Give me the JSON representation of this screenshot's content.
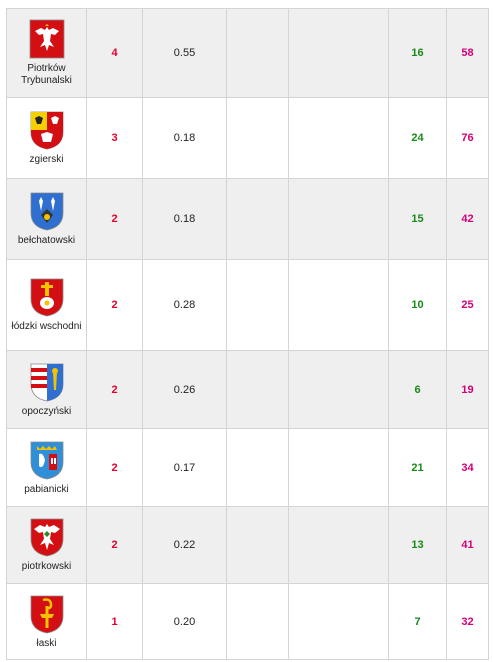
{
  "rows": [
    {
      "name": "Piotrków Trybunalski",
      "a": "4",
      "b": "0.55",
      "c": "16",
      "d": "58",
      "crest": "white-eagle-on-red-crest"
    },
    {
      "name": "zgierski",
      "a": "3",
      "b": "0.18",
      "c": "24",
      "d": "76",
      "crest": "yellow-red-eagle-crest"
    },
    {
      "name": "bełchatowski",
      "a": "2",
      "b": "0.18",
      "c": "15",
      "d": "42",
      "crest": "blue-fleur-crest"
    },
    {
      "name": "łódzki wschodni",
      "a": "2",
      "b": "0.28",
      "c": "10",
      "d": "25",
      "crest": "red-cross-crest"
    },
    {
      "name": "opoczyński",
      "a": "2",
      "b": "0.26",
      "c": "6",
      "d": "19",
      "crest": "red-white-stripes-crest"
    },
    {
      "name": "pabianicki",
      "a": "2",
      "b": "0.17",
      "c": "21",
      "d": "34",
      "crest": "blue-castle-crest"
    },
    {
      "name": "piotrkowski",
      "a": "2",
      "b": "0.22",
      "c": "13",
      "d": "41",
      "crest": "white-eagle-red-crest"
    },
    {
      "name": "łaski",
      "a": "1",
      "b": "0.20",
      "c": "7",
      "d": "32",
      "crest": "red-yellow-crozier-crest"
    }
  ],
  "colors": {
    "accent_red": "#e4002b",
    "accent_green": "#188a18",
    "accent_pink": "#d4007a"
  }
}
